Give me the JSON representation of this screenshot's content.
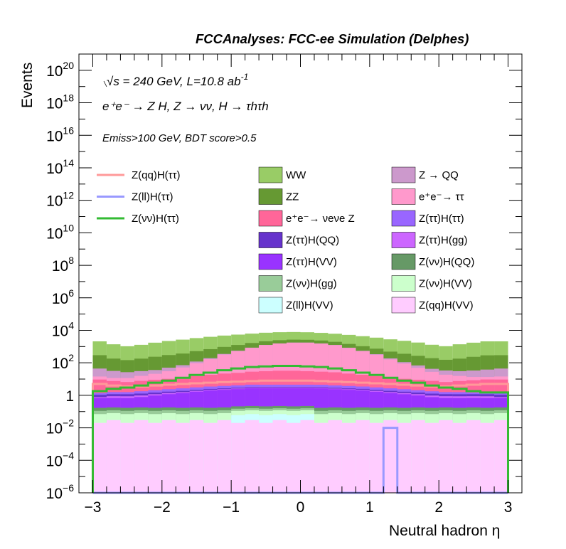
{
  "chart_data": {
    "type": "stacked-histogram",
    "title": "FCCAnalyses: FCC-ee Simulation (Delphes)",
    "annotations": {
      "energy": "√s = 240 GeV, L=10.8 ab",
      "energy_exponent": "-1",
      "process": "e⁺e⁻ → Z H, Z → νν, H → τhτh",
      "cuts": "Emiss>100 GeV, BDT score>0.5"
    },
    "xlabel": "Neutral hadron η",
    "ylabel": "Events",
    "xlim": [
      -3.2,
      3.2
    ],
    "ylim": [
      1e-06,
      1e+21
    ],
    "log_y": true,
    "x_ticks": [
      -3,
      -2,
      -1,
      0,
      1,
      2,
      3
    ],
    "x_tick_labels": [
      "−3",
      "−2",
      "−1",
      "0",
      "1",
      "2",
      "3"
    ],
    "y_tick_labels": [
      {
        "value": 1e-06,
        "base": "10",
        "exp": "−6"
      },
      {
        "value": 0.0001,
        "base": "10",
        "exp": "−4"
      },
      {
        "value": 0.01,
        "base": "10",
        "exp": "−2"
      },
      {
        "value": 1,
        "base": "1",
        "exp": ""
      },
      {
        "value": 100.0,
        "base": "10",
        "exp": "2"
      },
      {
        "value": 10000.0,
        "base": "10",
        "exp": "4"
      },
      {
        "value": 1000000.0,
        "base": "10",
        "exp": "6"
      },
      {
        "value": 100000000.0,
        "base": "10",
        "exp": "8"
      },
      {
        "value": 10000000000.0,
        "base": "10",
        "exp": "10"
      },
      {
        "value": 1000000000000.0,
        "base": "10",
        "exp": "12"
      },
      {
        "value": 100000000000000.0,
        "base": "10",
        "exp": "14"
      },
      {
        "value": 1e+16,
        "base": "10",
        "exp": "16"
      },
      {
        "value": 1e+18,
        "base": "10",
        "exp": "18"
      },
      {
        "value": 1e+20,
        "base": "10",
        "exp": "20"
      }
    ],
    "bin_edges": [
      -3,
      -2.8,
      -2.6,
      -2.4,
      -2.2,
      -2,
      -1.8,
      -1.6,
      -1.4,
      -1.2,
      -1,
      -0.8,
      -0.6,
      -0.4,
      -0.2,
      0,
      0.2,
      0.4,
      0.6,
      0.8,
      1,
      1.2,
      1.4,
      1.6,
      1.8,
      2,
      2.2,
      2.4,
      2.6,
      2.8,
      3
    ],
    "legend_placement": "top (three columns)",
    "stack_series": [
      {
        "name": "Z(qq)H(VV)",
        "color": "#ffccff",
        "values": [
          0.02,
          0.03,
          0.02,
          0.03,
          0.02,
          0.03,
          0.02,
          0.03,
          0.02,
          0.03,
          0.02,
          0.03,
          0.02,
          0.03,
          0.02,
          0.03,
          0.02,
          0.03,
          0.02,
          0.03,
          0.02,
          0.03,
          0.02,
          0.03,
          0.02,
          0.03,
          0.02,
          0.03,
          0.02,
          0.03
        ]
      },
      {
        "name": "Z(ll)H(VV)",
        "color": "#ccffff",
        "values": [
          0,
          0,
          0,
          0,
          0,
          0,
          0,
          0,
          0,
          0,
          0.04,
          0.04,
          0.04,
          0.04,
          0.04,
          0.04,
          0,
          0,
          0,
          0,
          0,
          0,
          0,
          0,
          0,
          0,
          0,
          0,
          0,
          0
        ]
      },
      {
        "name": "Z(νν)H(VV)",
        "color": "#ccffcc",
        "values": [
          0.05,
          0.05,
          0.05,
          0.05,
          0.05,
          0.05,
          0.05,
          0.05,
          0.05,
          0.05,
          0.05,
          0.05,
          0.05,
          0.05,
          0.05,
          0.05,
          0.05,
          0.05,
          0.05,
          0.05,
          0.05,
          0.05,
          0.05,
          0.05,
          0.05,
          0.05,
          0.05,
          0.05,
          0.05,
          0.05
        ]
      },
      {
        "name": "Z(νν)H(gg)",
        "color": "#99cc99",
        "values": [
          0.04,
          0.04,
          0.04,
          0.04,
          0.04,
          0.04,
          0.04,
          0.04,
          0.04,
          0.04,
          0.04,
          0.04,
          0.04,
          0.04,
          0.04,
          0.04,
          0.04,
          0.04,
          0.04,
          0.04,
          0.04,
          0.04,
          0.04,
          0.04,
          0.04,
          0.04,
          0.04,
          0.04,
          0.04,
          0.04
        ]
      },
      {
        "name": "Z(νν)H(QQ)",
        "color": "#669966",
        "values": [
          0.06,
          0.06,
          0.06,
          0.06,
          0.06,
          0.06,
          0.06,
          0.06,
          0.06,
          0.06,
          0.06,
          0.06,
          0.06,
          0.06,
          0.06,
          0.06,
          0.06,
          0.06,
          0.06,
          0.06,
          0.06,
          0.06,
          0.06,
          0.06,
          0.06,
          0.06,
          0.06,
          0.06,
          0.06,
          0.06
        ]
      },
      {
        "name": "Z(ττ)H(VV)",
        "color": "#9933ff",
        "values": [
          0.5,
          0.5,
          0.5,
          0.6,
          0.8,
          1.0,
          1.2,
          1.5,
          1.8,
          2.0,
          2.2,
          2.5,
          2.5,
          2.5,
          2.5,
          2.5,
          2.5,
          2.2,
          2.0,
          1.8,
          1.5,
          1.2,
          1.0,
          0.8,
          0.6,
          0.5,
          0.5,
          0.5,
          0.5,
          0.5
        ]
      },
      {
        "name": "Z(ττ)H(gg)",
        "color": "#cc66ff",
        "values": [
          0.1,
          0.2,
          0.2,
          0.2,
          0.2,
          0.2,
          0.2,
          0.2,
          0.2,
          0.2,
          0.2,
          0.2,
          0.2,
          0.2,
          0.2,
          0.2,
          0.2,
          0.2,
          0.2,
          0.2,
          0.2,
          0.2,
          0.2,
          0.2,
          0.2,
          0.2,
          0.2,
          0.2,
          0.2,
          0.1
        ]
      },
      {
        "name": "Z(ττ)H(QQ)",
        "color": "#6633cc",
        "values": [
          0.3,
          0.3,
          0.3,
          0.3,
          0.3,
          0.3,
          0.3,
          0.3,
          0.3,
          0.3,
          0.3,
          0.3,
          0.3,
          0.3,
          0.3,
          0.3,
          0.3,
          0.3,
          0.3,
          0.3,
          0.3,
          0.3,
          0.3,
          0.3,
          0.3,
          0.3,
          0.3,
          0.3,
          0.3,
          0.3
        ]
      },
      {
        "name": "Z(ττ)H(ττ)",
        "color": "#9966ff",
        "values": [
          0.3,
          0.4,
          0.4,
          0.5,
          0.6,
          0.7,
          0.8,
          0.9,
          1.0,
          1.1,
          1.2,
          1.3,
          1.3,
          1.3,
          1.3,
          1.3,
          1.3,
          1.2,
          1.1,
          1.0,
          0.9,
          0.8,
          0.7,
          0.6,
          0.5,
          0.4,
          0.4,
          0.3,
          0.3,
          0.3
        ]
      },
      {
        "name": "e⁺e⁻→ νeνe Z",
        "color": "#ff6699",
        "values": [
          8,
          6,
          5,
          6,
          7,
          8,
          9,
          12,
          15,
          18,
          20,
          24,
          26,
          28,
          28,
          26,
          24,
          22,
          18,
          15,
          12,
          10,
          8,
          7,
          6,
          5,
          6,
          7,
          8,
          8
        ]
      },
      {
        "name": "e⁺e⁻→ ττ",
        "color": "#ff99cc",
        "values": [
          5,
          4,
          5,
          8,
          12,
          20,
          40,
          80,
          150,
          300,
          500,
          800,
          1200,
          1500,
          1700,
          1700,
          1500,
          1200,
          800,
          500,
          300,
          150,
          80,
          40,
          20,
          12,
          8,
          5,
          4,
          5
        ]
      },
      {
        "name": "Z → QQ",
        "color": "#cc99cc",
        "values": [
          30,
          20,
          15,
          15,
          15,
          20,
          20,
          25,
          25,
          30,
          30,
          30,
          35,
          35,
          35,
          35,
          35,
          30,
          30,
          30,
          25,
          25,
          20,
          20,
          15,
          15,
          15,
          20,
          25,
          30
        ]
      },
      {
        "name": "ZZ",
        "color": "#669933",
        "values": [
          250,
          150,
          120,
          150,
          200,
          250,
          300,
          400,
          500,
          600,
          700,
          800,
          850,
          900,
          900,
          850,
          800,
          700,
          600,
          500,
          400,
          300,
          250,
          200,
          150,
          120,
          150,
          200,
          250,
          250
        ]
      },
      {
        "name": "WW",
        "color": "#99cc66",
        "values": [
          1800,
          1200,
          900,
          1100,
          1500,
          1900,
          2300,
          2800,
          3300,
          3800,
          4200,
          4600,
          5000,
          5200,
          5200,
          5000,
          4600,
          4200,
          3800,
          3300,
          2800,
          2300,
          1900,
          1500,
          1100,
          900,
          1200,
          1500,
          1800,
          1800
        ]
      }
    ],
    "line_series": [
      {
        "name": "Z(qq)H(ττ)",
        "color": "#ff9999",
        "values": [
          5,
          4,
          3.5,
          3.5,
          4,
          4.5,
          5,
          5.5,
          6,
          6.5,
          7,
          7.5,
          8,
          8,
          8,
          8,
          7.5,
          7,
          6.5,
          6,
          5.5,
          5,
          4.5,
          4,
          3.5,
          3.5,
          4,
          4.5,
          5,
          5
        ]
      },
      {
        "name": "Z(ll)H(ττ)",
        "color": "#9999ff",
        "values": [
          0,
          0,
          0,
          0,
          0,
          0,
          0,
          0,
          0,
          0,
          0,
          0,
          0,
          0,
          0,
          0,
          0,
          0,
          0,
          0,
          0,
          0.01,
          0,
          0,
          0,
          0,
          0,
          0,
          0,
          0
        ]
      },
      {
        "name": "Z(νν)H(ττ)",
        "color": "#33bb33",
        "values": [
          1.8,
          2.5,
          3,
          4,
          6,
          8,
          12,
          18,
          25,
          35,
          45,
          55,
          60,
          65,
          65,
          60,
          55,
          45,
          35,
          25,
          18,
          12,
          8,
          6,
          4,
          3,
          2.5,
          1.8,
          1.5,
          1.5
        ]
      }
    ]
  },
  "legend": {
    "col1": [
      {
        "label": "Z(qq)H(ττ)",
        "kind": "line",
        "color": "#ff9999"
      },
      {
        "label": "Z(ll)H(ττ)",
        "kind": "line",
        "color": "#9999ff"
      },
      {
        "label": "Z(νν)H(ττ)",
        "kind": "line",
        "color": "#33bb33"
      }
    ],
    "col2": [
      {
        "label": "WW",
        "kind": "box",
        "color": "#99cc66"
      },
      {
        "label": "ZZ",
        "kind": "box",
        "color": "#669933"
      },
      {
        "label": "e⁺e⁻→ νeνe Z",
        "kind": "box",
        "color": "#ff6699"
      },
      {
        "label": "Z(ττ)H(QQ)",
        "kind": "box",
        "color": "#6633cc"
      },
      {
        "label": "Z(ττ)H(VV)",
        "kind": "box",
        "color": "#9933ff"
      },
      {
        "label": "Z(νν)H(gg)",
        "kind": "box",
        "color": "#99cc99"
      },
      {
        "label": "Z(ll)H(VV)",
        "kind": "box",
        "color": "#ccffff"
      }
    ],
    "col3": [
      {
        "label": "Z → QQ",
        "kind": "box",
        "color": "#cc99cc"
      },
      {
        "label": "e⁺e⁻→ ττ",
        "kind": "box",
        "color": "#ff99cc"
      },
      {
        "label": "Z(ττ)H(ττ)",
        "kind": "box",
        "color": "#9966ff"
      },
      {
        "label": "Z(ττ)H(gg)",
        "kind": "box",
        "color": "#cc66ff"
      },
      {
        "label": "Z(νν)H(QQ)",
        "kind": "box",
        "color": "#669966"
      },
      {
        "label": "Z(νν)H(VV)",
        "kind": "box",
        "color": "#ccffcc"
      },
      {
        "label": "Z(qq)H(VV)",
        "kind": "box",
        "color": "#ffccff"
      }
    ]
  }
}
